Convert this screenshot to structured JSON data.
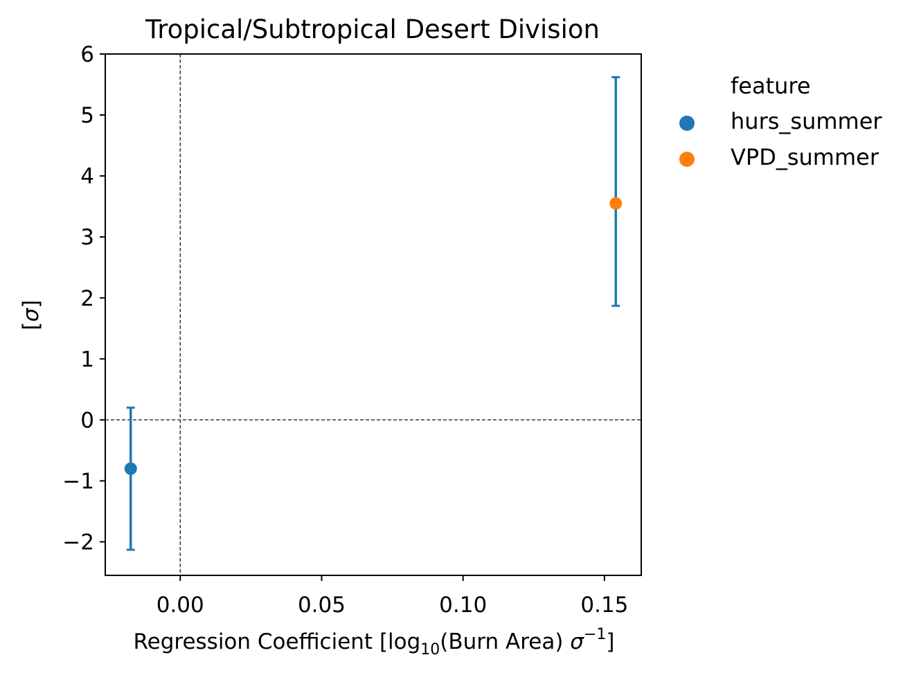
{
  "chart_data": {
    "type": "scatter",
    "title": "Tropical/Subtropical Desert Division",
    "xlabel": "Regression Coefficient [log10(Burn Area) σ−1]",
    "xlabel_parts": {
      "pre": "Regression Coefficient [log",
      "sub": "10",
      "mid": "(Burn Area) ",
      "sigma": "σ",
      "sup": "−1",
      "post": "]"
    },
    "ylabel": "[σ]",
    "ylabel_parts": {
      "pre": "[",
      "sigma": "σ",
      "post": "]"
    },
    "xlim": [
      -0.0265,
      0.163
    ],
    "ylim": [
      -2.55,
      6.0
    ],
    "xticks": [
      0.0,
      0.05,
      0.1,
      0.15
    ],
    "xtick_labels": [
      "0.00",
      "0.05",
      "0.10",
      "0.15"
    ],
    "yticks": [
      -2,
      -1,
      0,
      1,
      2,
      3,
      4,
      5,
      6
    ],
    "ytick_labels": [
      "−2",
      "−1",
      "0",
      "1",
      "2",
      "3",
      "4",
      "5",
      "6"
    ],
    "reference_lines": {
      "x": 0,
      "y": 0,
      "style": "dashed"
    },
    "grid": false,
    "legend": {
      "title": "feature",
      "placement": "outside-right-top"
    },
    "series": [
      {
        "name": "hurs_summer",
        "color": "#1f77b4",
        "x": -0.0175,
        "y": -0.8,
        "y_err_low": -2.13,
        "y_err_high": 0.2
      },
      {
        "name": "VPD_summer",
        "color": "#ff7f0e",
        "x": 0.154,
        "y": 3.55,
        "y_err_low": 1.87,
        "y_err_high": 5.62
      }
    ],
    "errorbar_color": "#1f77b4"
  }
}
